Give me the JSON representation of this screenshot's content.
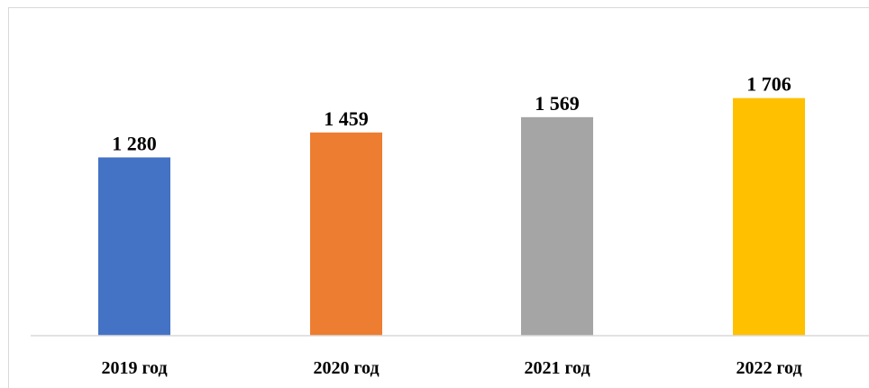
{
  "chart_data": {
    "type": "bar",
    "categories": [
      "2019 год",
      "2020 год",
      "2021 год",
      "2022 год"
    ],
    "values": [
      1280,
      1459,
      1569,
      1706
    ],
    "data_labels": [
      "1 280",
      "1 459",
      "1 569",
      "1 706"
    ],
    "colors": [
      "#4472C4",
      "#ED7D31",
      "#A5A5A5",
      "#FFC000"
    ],
    "title": "",
    "xlabel": "",
    "ylabel": "",
    "ylim": [
      0,
      2300
    ],
    "grid": false,
    "legend": "none"
  }
}
